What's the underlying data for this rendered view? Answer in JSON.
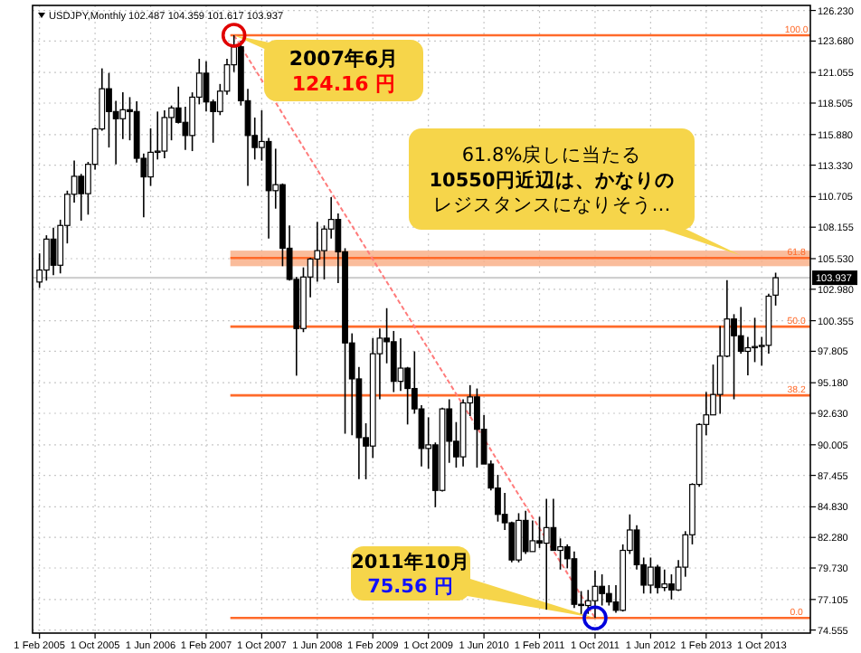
{
  "chart_data": {
    "type": "candlestick",
    "title": "USDJPY,Monthly  102.487 104.359 101.617 103.937",
    "x": [
      "2005-02",
      "2005-03",
      "2005-04",
      "2005-05",
      "2005-06",
      "2005-07",
      "2005-08",
      "2005-09",
      "2005-10",
      "2005-11",
      "2005-12",
      "2006-01",
      "2006-02",
      "2006-03",
      "2006-04",
      "2006-05",
      "2006-06",
      "2006-07",
      "2006-08",
      "2006-09",
      "2006-10",
      "2006-11",
      "2006-12",
      "2007-01",
      "2007-02",
      "2007-03",
      "2007-04",
      "2007-05",
      "2007-06",
      "2007-07",
      "2007-08",
      "2007-09",
      "2007-10",
      "2007-11",
      "2007-12",
      "2008-01",
      "2008-02",
      "2008-03",
      "2008-04",
      "2008-05",
      "2008-06",
      "2008-07",
      "2008-08",
      "2008-09",
      "2008-10",
      "2008-11",
      "2008-12",
      "2009-01",
      "2009-02",
      "2009-03",
      "2009-04",
      "2009-05",
      "2009-06",
      "2009-07",
      "2009-08",
      "2009-09",
      "2009-10",
      "2009-11",
      "2009-12",
      "2010-01",
      "2010-02",
      "2010-03",
      "2010-04",
      "2010-05",
      "2010-06",
      "2010-07",
      "2010-08",
      "2010-09",
      "2010-10",
      "2010-11",
      "2010-12",
      "2011-01",
      "2011-02",
      "2011-03",
      "2011-04",
      "2011-05",
      "2011-06",
      "2011-07",
      "2011-08",
      "2011-09",
      "2011-10",
      "2011-11",
      "2011-12",
      "2012-01",
      "2012-02",
      "2012-03",
      "2012-04",
      "2012-05",
      "2012-06",
      "2012-07",
      "2012-08",
      "2012-09",
      "2012-10",
      "2012-11",
      "2012-12",
      "2013-01",
      "2013-02",
      "2013-03",
      "2013-04",
      "2013-05",
      "2013-06",
      "2013-07",
      "2013-08",
      "2013-09",
      "2013-10",
      "2013-11",
      "2013-12"
    ],
    "ohlc": [
      [
        103.58,
        105.97,
        103.1,
        104.58
      ],
      [
        104.58,
        107.48,
        103.7,
        107.16
      ],
      [
        107.16,
        108.12,
        104.15,
        104.98
      ],
      [
        104.98,
        108.78,
        104.3,
        108.3
      ],
      [
        108.3,
        111.2,
        106.8,
        110.9
      ],
      [
        110.9,
        113.72,
        110.2,
        112.4
      ],
      [
        112.4,
        112.6,
        108.7,
        110.95
      ],
      [
        110.95,
        113.6,
        109.2,
        113.4
      ],
      [
        113.4,
        116.45,
        112.95,
        116.35
      ],
      [
        116.35,
        121.4,
        116.2,
        119.7
      ],
      [
        119.7,
        121.02,
        114.8,
        117.8
      ],
      [
        117.8,
        118.7,
        113.4,
        117.2
      ],
      [
        117.2,
        119.4,
        115.5,
        117.95
      ],
      [
        117.95,
        119.0,
        115.4,
        117.8
      ],
      [
        117.8,
        118.66,
        113.55,
        113.9
      ],
      [
        113.9,
        114.3,
        108.98,
        112.35
      ],
      [
        112.35,
        116.4,
        111.6,
        114.4
      ],
      [
        114.4,
        117.8,
        113.8,
        114.5
      ],
      [
        114.5,
        117.9,
        113.9,
        117.3
      ],
      [
        117.3,
        118.3,
        115.4,
        118.1
      ],
      [
        118.1,
        119.88,
        116.8,
        116.9
      ],
      [
        116.9,
        118.2,
        114.6,
        115.8
      ],
      [
        115.8,
        119.4,
        114.5,
        119.0
      ],
      [
        119.0,
        122.2,
        118.4,
        121.0
      ],
      [
        121.0,
        122.0,
        117.8,
        118.6
      ],
      [
        118.6,
        118.8,
        115.2,
        117.8
      ],
      [
        117.8,
        120.1,
        117.5,
        119.5
      ],
      [
        119.5,
        122.2,
        119.2,
        121.7
      ],
      [
        121.7,
        124.16,
        121.1,
        123.2
      ],
      [
        123.2,
        123.7,
        118.3,
        118.7
      ],
      [
        118.7,
        119.7,
        111.6,
        115.8
      ],
      [
        115.8,
        117.3,
        113.8,
        114.8
      ],
      [
        114.8,
        117.9,
        113.7,
        115.3
      ],
      [
        115.3,
        115.6,
        107.2,
        111.2
      ],
      [
        111.2,
        114.7,
        109.7,
        111.7
      ],
      [
        111.7,
        111.8,
        104.9,
        106.4
      ],
      [
        106.4,
        108.3,
        103.7,
        103.8
      ],
      [
        103.8,
        104.0,
        95.77,
        99.7
      ],
      [
        99.7,
        104.8,
        99.4,
        104.0
      ],
      [
        104.0,
        105.6,
        102.3,
        105.5
      ],
      [
        105.5,
        108.6,
        103.6,
        106.2
      ],
      [
        106.2,
        108.3,
        103.8,
        108.0
      ],
      [
        108.0,
        110.66,
        107.2,
        108.8
      ],
      [
        108.8,
        109.3,
        103.5,
        106.1
      ],
      [
        106.1,
        106.4,
        90.93,
        98.5
      ],
      [
        98.5,
        99.3,
        90.8,
        95.5
      ],
      [
        95.5,
        96.5,
        87.14,
        90.6
      ],
      [
        90.6,
        91.8,
        87.13,
        89.9
      ],
      [
        89.9,
        98.9,
        88.9,
        97.6
      ],
      [
        97.6,
        99.7,
        93.8,
        98.9
      ],
      [
        98.9,
        101.4,
        96.8,
        98.6
      ],
      [
        98.6,
        99.5,
        94.4,
        95.3
      ],
      [
        95.3,
        98.9,
        94.5,
        96.4
      ],
      [
        96.4,
        96.5,
        91.7,
        94.7
      ],
      [
        94.7,
        97.8,
        92.6,
        93.0
      ],
      [
        93.0,
        93.3,
        88.2,
        89.7
      ],
      [
        89.7,
        92.3,
        88.0,
        90.0
      ],
      [
        90.0,
        90.2,
        84.8,
        86.2
      ],
      [
        86.2,
        93.1,
        86.1,
        93.0
      ],
      [
        93.0,
        93.8,
        88.5,
        90.3
      ],
      [
        90.3,
        91.9,
        88.1,
        89.0
      ],
      [
        89.0,
        93.8,
        88.2,
        93.5
      ],
      [
        93.5,
        94.98,
        92.4,
        94.0
      ],
      [
        94.0,
        94.7,
        88.1,
        91.3
      ],
      [
        91.3,
        92.5,
        88.4,
        88.4
      ],
      [
        88.4,
        88.7,
        86.2,
        86.4
      ],
      [
        86.4,
        87.5,
        83.6,
        84.2
      ],
      [
        84.2,
        86.0,
        82.9,
        83.5
      ],
      [
        83.5,
        83.6,
        80.2,
        80.4
      ],
      [
        80.4,
        84.3,
        80.2,
        83.7
      ],
      [
        83.7,
        84.5,
        80.9,
        81.1
      ],
      [
        81.1,
        83.7,
        81.1,
        82.0
      ],
      [
        82.0,
        84.0,
        81.4,
        81.8
      ],
      [
        81.8,
        85.5,
        76.25,
        83.1
      ],
      [
        83.1,
        85.5,
        81.2,
        81.2
      ],
      [
        81.2,
        82.2,
        79.6,
        81.5
      ],
      [
        81.5,
        81.7,
        79.7,
        80.5
      ],
      [
        80.5,
        81.1,
        76.4,
        76.7
      ],
      [
        76.7,
        77.8,
        75.9,
        76.6
      ],
      [
        76.6,
        77.9,
        75.9,
        77.0
      ],
      [
        77.0,
        79.5,
        75.56,
        78.2
      ],
      [
        78.2,
        79.2,
        76.6,
        77.6
      ],
      [
        77.6,
        78.3,
        76.6,
        76.9
      ],
      [
        76.9,
        78.3,
        76.0,
        76.2
      ],
      [
        76.2,
        81.7,
        76.1,
        81.2
      ],
      [
        81.2,
        84.2,
        80.9,
        82.9
      ],
      [
        82.9,
        83.3,
        79.6,
        80.0
      ],
      [
        80.0,
        80.6,
        77.6,
        78.3
      ],
      [
        78.3,
        80.6,
        77.6,
        79.8
      ],
      [
        79.8,
        80.0,
        77.6,
        78.1
      ],
      [
        78.1,
        79.6,
        77.8,
        78.4
      ],
      [
        78.4,
        79.2,
        77.1,
        77.9
      ],
      [
        77.9,
        80.4,
        77.8,
        79.8
      ],
      [
        79.8,
        82.8,
        79.0,
        82.5
      ],
      [
        82.5,
        86.8,
        81.7,
        86.7
      ],
      [
        86.7,
        91.8,
        86.5,
        91.7
      ],
      [
        91.7,
        94.4,
        90.8,
        92.5
      ],
      [
        92.5,
        96.7,
        92.5,
        94.2
      ],
      [
        94.2,
        99.9,
        92.6,
        97.4
      ],
      [
        97.4,
        103.74,
        97.3,
        100.5
      ],
      [
        100.5,
        100.9,
        93.8,
        99.1
      ],
      [
        99.1,
        101.5,
        97.6,
        97.8
      ],
      [
        97.8,
        99.0,
        95.8,
        98.1
      ],
      [
        98.1,
        100.6,
        96.9,
        98.2
      ],
      [
        98.2,
        99.0,
        96.6,
        98.3
      ],
      [
        98.3,
        102.6,
        97.6,
        102.4
      ],
      [
        102.487,
        104.359,
        101.617,
        103.937
      ]
    ],
    "series": [
      {
        "type": "line",
        "x": [
          "2007-06",
          "2011-10"
        ],
        "values": [
          124.16,
          75.56
        ],
        "color": "#ff7b7b",
        "line_style": "dotted",
        "marker": "circle",
        "colors": [
          "#e00000",
          "#0000dd"
        ]
      }
    ],
    "xlim": [
      "2005-01",
      "2014-05"
    ],
    "xticks": [
      {
        "value": "2005-02",
        "label": "1 Feb 2005"
      },
      {
        "value": "2005-10",
        "label": "1 Oct 2005"
      },
      {
        "value": "2006-06",
        "label": "1 Jun 2006"
      },
      {
        "value": "2007-02",
        "label": "1 Feb 2007"
      },
      {
        "value": "2007-10",
        "label": "1 Oct 2007"
      },
      {
        "value": "2008-06",
        "label": "1 Jun 2008"
      },
      {
        "value": "2009-02",
        "label": "1 Feb 2009"
      },
      {
        "value": "2009-10",
        "label": "1 Oct 2009"
      },
      {
        "value": "2010-06",
        "label": "1 Jun 2010"
      },
      {
        "value": "2011-02",
        "label": "1 Feb 2011"
      },
      {
        "value": "2011-10",
        "label": "1 Oct 2011"
      },
      {
        "value": "2012-06",
        "label": "1 Jun 2012"
      },
      {
        "value": "2013-02",
        "label": "1 Feb 2013"
      },
      {
        "value": "2013-10",
        "label": "1 Oct 2013"
      }
    ],
    "ylim": [
      74.3,
      126.65
    ],
    "yticks": [
      {
        "value": 126.23,
        "label": "126.230"
      },
      {
        "value": 123.68,
        "label": "123.680"
      },
      {
        "value": 121.055,
        "label": "121.055"
      },
      {
        "value": 118.505,
        "label": "118.505"
      },
      {
        "value": 115.88,
        "label": "115.880"
      },
      {
        "value": 113.33,
        "label": "113.330"
      },
      {
        "value": 110.705,
        "label": "110.705"
      },
      {
        "value": 108.155,
        "label": "108.155"
      },
      {
        "value": 105.53,
        "label": "105.530"
      },
      {
        "value": 102.98,
        "label": "102.980"
      },
      {
        "value": 100.355,
        "label": "100.355"
      },
      {
        "value": 97.805,
        "label": "97.805"
      },
      {
        "value": 95.18,
        "label": "95.180"
      },
      {
        "value": 92.63,
        "label": "92.630"
      },
      {
        "value": 90.005,
        "label": "90.005"
      },
      {
        "value": 87.455,
        "label": "87.455"
      },
      {
        "value": 84.83,
        "label": "84.830"
      },
      {
        "value": 82.28,
        "label": "82.280"
      },
      {
        "value": 79.73,
        "label": "79.730"
      },
      {
        "value": 77.105,
        "label": "77.105"
      },
      {
        "value": 74.555,
        "label": "74.555"
      }
    ],
    "grid": true,
    "bands": [
      {
        "axis": "y",
        "from": 104.9,
        "to": 106.2,
        "color": "#f9b089"
      }
    ],
    "ref_lines": [
      {
        "axis": "y",
        "value": 103.937,
        "label": "103.937",
        "color": "#d0d0d0"
      },
      {
        "axis": "y",
        "value": 124.16,
        "color": "#ff6a2a"
      },
      {
        "axis": "y",
        "value": 105.59,
        "color": "#ff6a2a"
      },
      {
        "axis": "y",
        "value": 99.86,
        "color": "#ff6a2a"
      },
      {
        "axis": "y",
        "value": 94.13,
        "color": "#ff6a2a"
      },
      {
        "axis": "y",
        "value": 75.56,
        "color": "#ff6a2a"
      }
    ],
    "annotations": [
      {
        "text": "2007年6月\n124.16 円",
        "x": "2007-06",
        "y": 124.16
      },
      {
        "text": "2011年10月\n75.56 円",
        "x": "2011-10",
        "y": 75.56
      },
      {
        "text": "61.8%戻しに当たる\n10550円近辺は、かなりのレジスタンスになりそう…",
        "x": "2013-07",
        "y": 105.8
      },
      {
        "text": "100.0",
        "x": "2014-03",
        "y": 124.16
      },
      {
        "text": "61.8",
        "x": "2014-03",
        "y": 105.59
      },
      {
        "text": "50.0",
        "x": "2014-03",
        "y": 99.86
      },
      {
        "text": "38.2",
        "x": "2014-03",
        "y": 94.13
      },
      {
        "text": "0.0",
        "x": "2014-03",
        "y": 75.56
      }
    ]
  }
}
